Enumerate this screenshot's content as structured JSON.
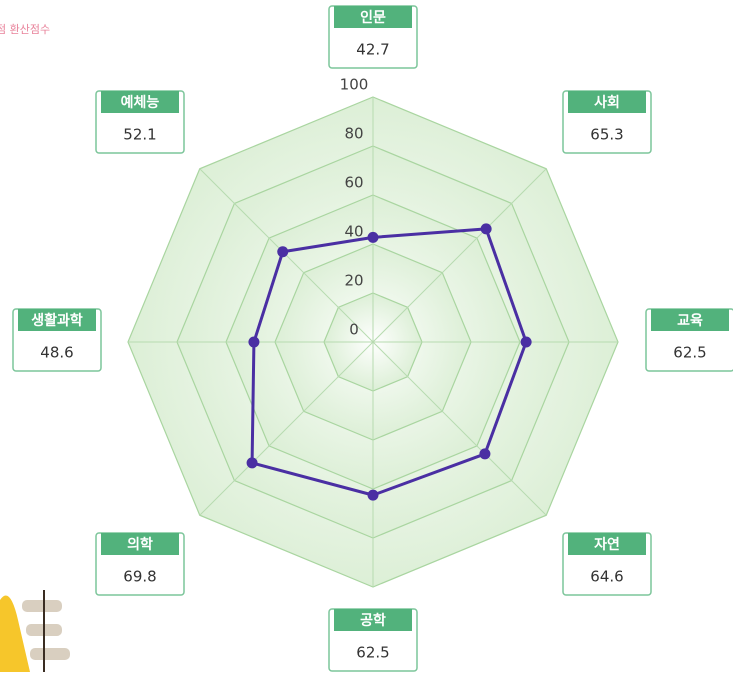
{
  "chart_data": {
    "type": "radar",
    "subtitle": "점 환산점수",
    "categories": [
      "인문",
      "사회",
      "교육",
      "자연",
      "공학",
      "의학",
      "생활과학",
      "예체능"
    ],
    "values": [
      42.7,
      65.3,
      62.5,
      64.6,
      62.5,
      69.8,
      48.6,
      52.1
    ],
    "color": "#4a2fa3",
    "rlim": [
      0,
      100
    ],
    "rticks": [
      0,
      20,
      40,
      60,
      80,
      100
    ],
    "grid": true
  }
}
